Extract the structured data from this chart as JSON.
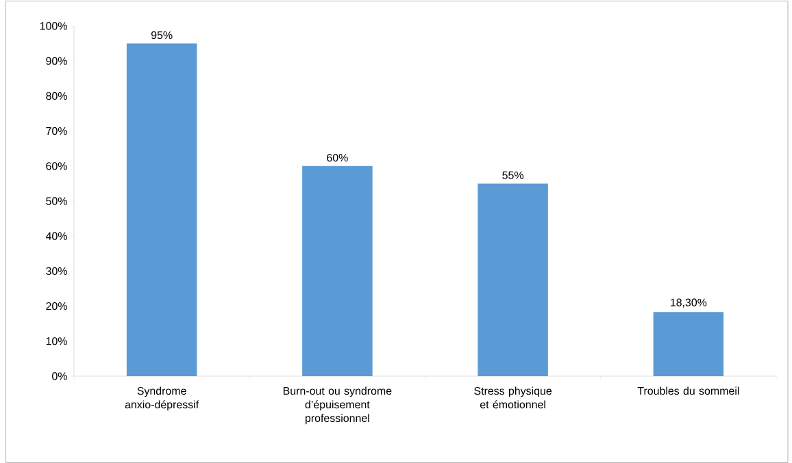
{
  "chart_data": {
    "type": "bar",
    "categories": [
      "Syndrome anxio-dépressif",
      "Burn-out ou syndrome d’épuisement professionnel",
      "Stress physique et émotionnel",
      "Troubles du sommeil"
    ],
    "values": [
      95,
      60,
      55,
      18.3
    ],
    "value_labels": [
      "95%",
      "60%",
      "55%",
      "18,30%"
    ],
    "color": "#5b9bd5",
    "ylim": [
      0,
      100
    ],
    "yticks": [
      {
        "value": 0,
        "label": "0%"
      },
      {
        "value": 10,
        "label": "10%"
      },
      {
        "value": 20,
        "label": "20%"
      },
      {
        "value": 30,
        "label": "30%"
      },
      {
        "value": 40,
        "label": "40%"
      },
      {
        "value": 50,
        "label": "50%"
      },
      {
        "value": 60,
        "label": "60%"
      },
      {
        "value": 70,
        "label": "70%"
      },
      {
        "value": 80,
        "label": "80%"
      },
      {
        "value": 90,
        "label": "90%"
      },
      {
        "value": 100,
        "label": "100%"
      }
    ]
  }
}
